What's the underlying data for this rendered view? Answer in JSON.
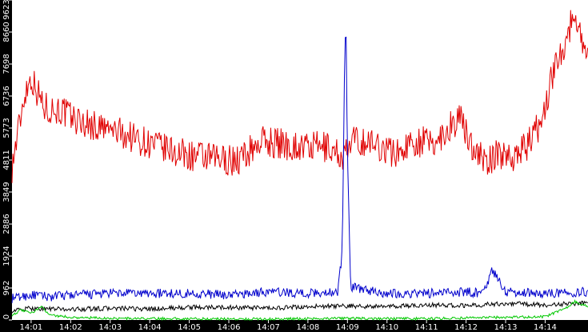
{
  "chart_data": {
    "type": "line",
    "title": "",
    "xlabel": "",
    "ylabel": "",
    "grid": false,
    "legend": "none",
    "x_ticks": [
      "14:01",
      "14:02",
      "14:03",
      "14:04",
      "14:05",
      "14:06",
      "14:07",
      "14:08",
      "14:09",
      "14:10",
      "14:11",
      "14:12",
      "14:13",
      "14:14"
    ],
    "x_range": [
      "14:00:31",
      "14:15:05"
    ],
    "y_ticks": [
      0,
      962,
      1924,
      2886,
      3849,
      4811,
      5773,
      6736,
      7698,
      8660,
      9623
    ],
    "ylim": [
      0,
      9623
    ],
    "colors": {
      "red": "#e00000",
      "blue": "#0000cc",
      "black": "#000000",
      "green": "#00c800",
      "axis_bg": "#000000",
      "tick_text": "#ffffff"
    },
    "series": [
      {
        "color": "red",
        "x": [
          "14:00:31",
          "14:00:50",
          "14:01:00",
          "14:01:20",
          "14:01:45",
          "14:02:10",
          "14:02:40",
          "14:03:20",
          "14:04:00",
          "14:04:45",
          "14:05:30",
          "14:06:15",
          "14:06:50",
          "14:07:20",
          "14:07:50",
          "14:08:30",
          "14:08:55",
          "14:09:10",
          "14:09:40",
          "14:10:15",
          "14:10:40",
          "14:11:10",
          "14:11:25",
          "14:11:50",
          "14:12:05",
          "14:12:30",
          "14:12:50",
          "14:13:15",
          "14:13:35",
          "14:13:55",
          "14:14:15",
          "14:14:35",
          "14:14:45",
          "14:15:05"
        ],
        "values": [
          4600,
          6800,
          7300,
          6400,
          6300,
          6000,
          5800,
          5600,
          5300,
          5000,
          4850,
          4800,
          5400,
          5300,
          5200,
          5200,
          4900,
          5400,
          5300,
          5000,
          5400,
          5300,
          5600,
          6100,
          5400,
          4700,
          5000,
          4950,
          5300,
          6000,
          7700,
          8600,
          9300,
          7800
        ]
      },
      {
        "color": "blue",
        "x": [
          "14:00:31",
          "14:01:00",
          "14:01:30",
          "14:02:00",
          "14:03:00",
          "14:04:00",
          "14:05:00",
          "14:06:00",
          "14:07:00",
          "14:08:00",
          "14:08:45",
          "14:08:52",
          "14:08:56",
          "14:08:58",
          "14:09:00",
          "14:09:05",
          "14:09:30",
          "14:10:00",
          "14:11:00",
          "14:12:00",
          "14:12:25",
          "14:12:40",
          "14:13:00",
          "14:14:00",
          "14:15:05"
        ],
        "values": [
          650,
          750,
          700,
          750,
          800,
          800,
          800,
          750,
          850,
          800,
          850,
          2000,
          8300,
          8500,
          5000,
          1000,
          900,
          800,
          800,
          850,
          800,
          1500,
          850,
          800,
          850
        ]
      },
      {
        "color": "black",
        "x": [
          "14:00:31",
          "14:01:00",
          "14:02:00",
          "14:03:00",
          "14:04:00",
          "14:05:00",
          "14:06:00",
          "14:07:00",
          "14:08:00",
          "14:09:00",
          "14:10:00",
          "14:11:00",
          "14:12:00",
          "14:13:00",
          "14:14:00",
          "14:15:05"
        ],
        "values": [
          280,
          350,
          320,
          350,
          330,
          380,
          380,
          350,
          400,
          420,
          400,
          450,
          430,
          500,
          450,
          520
        ]
      },
      {
        "color": "green",
        "x": [
          "14:00:31",
          "14:00:45",
          "14:01:00",
          "14:01:15",
          "14:01:30",
          "14:02:00",
          "14:03:00",
          "14:04:00",
          "14:05:00",
          "14:06:00",
          "14:07:00",
          "14:08:00",
          "14:09:00",
          "14:10:00",
          "14:11:00",
          "14:12:00",
          "14:13:00",
          "14:14:00",
          "14:14:30",
          "14:14:45",
          "14:15:05"
        ],
        "values": [
          150,
          300,
          200,
          400,
          150,
          80,
          50,
          40,
          40,
          30,
          30,
          40,
          50,
          40,
          40,
          60,
          80,
          100,
          350,
          550,
          400
        ]
      }
    ]
  }
}
